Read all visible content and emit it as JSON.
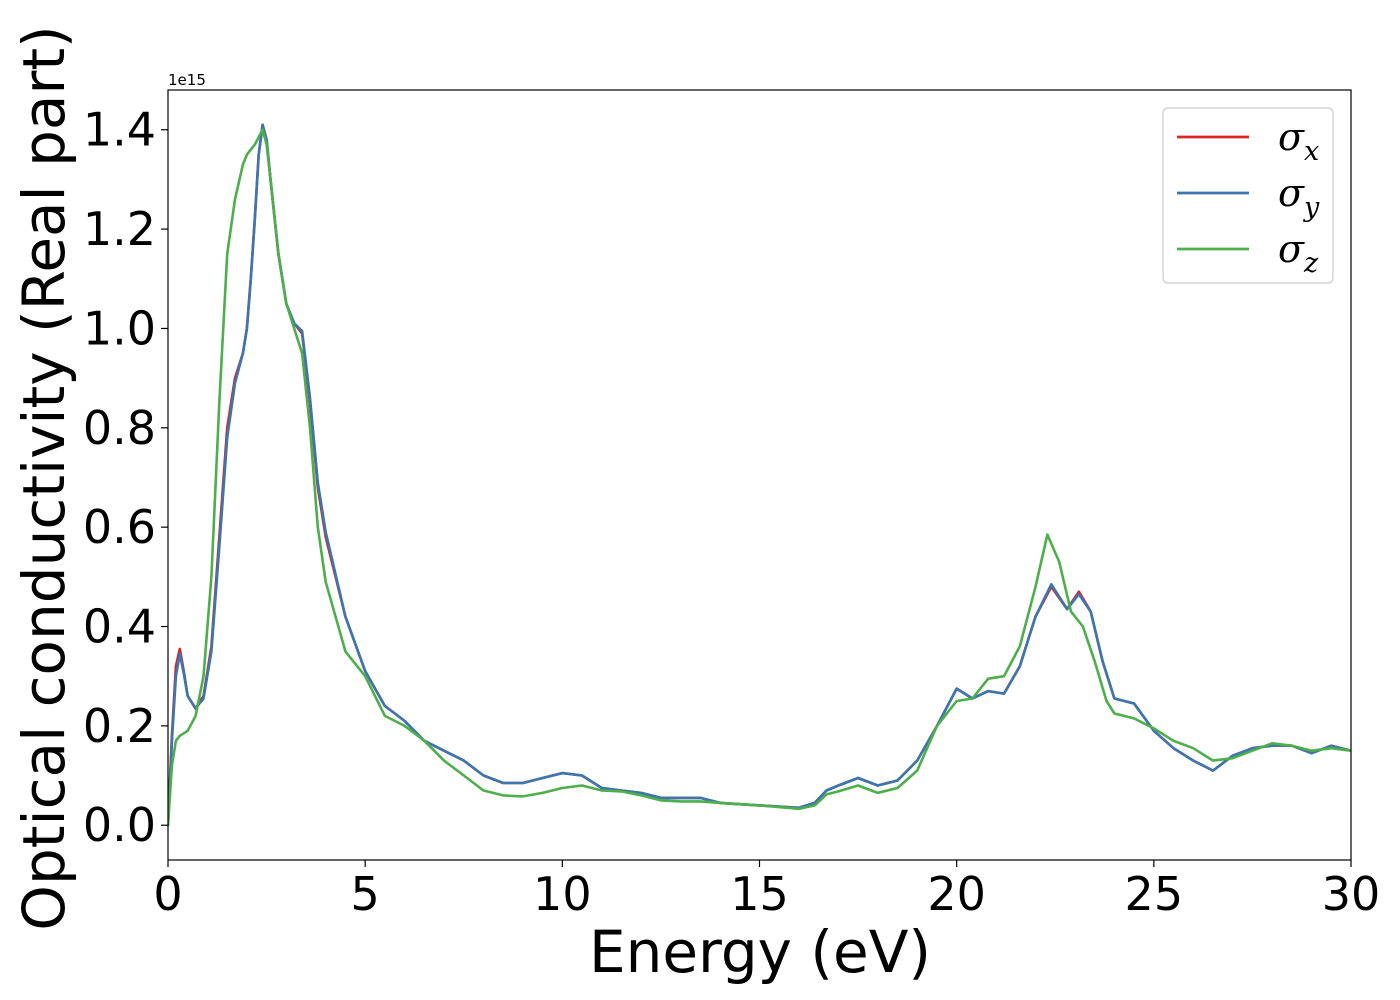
{
  "chart_data": {
    "type": "line",
    "title": "",
    "xlabel": "Energy (eV)",
    "ylabel": "Optical conductivity (Real part)",
    "y_offset_label": "1e15",
    "xlim": [
      0,
      30
    ],
    "ylim": [
      -0.07,
      1.48
    ],
    "x_ticks": [
      0,
      5,
      10,
      15,
      20,
      25,
      30
    ],
    "x_tick_labels": [
      "0",
      "5",
      "10",
      "15",
      "20",
      "25",
      "30"
    ],
    "y_ticks": [
      0.0,
      0.2,
      0.4,
      0.6,
      0.8,
      1.0,
      1.2,
      1.4
    ],
    "y_tick_labels": [
      "0.0",
      "0.2",
      "0.4",
      "0.6",
      "0.8",
      "1.0",
      "1.2",
      "1.4"
    ],
    "grid": false,
    "legend_position": "top-right",
    "series": [
      {
        "name": "σx",
        "color": "#d62728",
        "points": [
          [
            0,
            0
          ],
          [
            0.1,
            0.18
          ],
          [
            0.2,
            0.32
          ],
          [
            0.3,
            0.355
          ],
          [
            0.4,
            0.31
          ],
          [
            0.5,
            0.26
          ],
          [
            0.7,
            0.235
          ],
          [
            0.9,
            0.26
          ],
          [
            1.1,
            0.36
          ],
          [
            1.3,
            0.58
          ],
          [
            1.5,
            0.8
          ],
          [
            1.7,
            0.9
          ],
          [
            1.9,
            0.95
          ],
          [
            2.0,
            1.0
          ],
          [
            2.1,
            1.1
          ],
          [
            2.2,
            1.22
          ],
          [
            2.3,
            1.35
          ],
          [
            2.4,
            1.41
          ],
          [
            2.5,
            1.38
          ],
          [
            2.6,
            1.3
          ],
          [
            2.8,
            1.15
          ],
          [
            3.0,
            1.05
          ],
          [
            3.2,
            1.01
          ],
          [
            3.4,
            0.99
          ],
          [
            3.6,
            0.85
          ],
          [
            3.8,
            0.68
          ],
          [
            4.0,
            0.58
          ],
          [
            4.5,
            0.42
          ],
          [
            5.0,
            0.31
          ],
          [
            5.5,
            0.24
          ],
          [
            6.0,
            0.21
          ],
          [
            6.5,
            0.17
          ],
          [
            7.0,
            0.15
          ],
          [
            7.5,
            0.13
          ],
          [
            8.0,
            0.1
          ],
          [
            8.5,
            0.085
          ],
          [
            9.0,
            0.085
          ],
          [
            9.5,
            0.095
          ],
          [
            10.0,
            0.105
          ],
          [
            10.5,
            0.1
          ],
          [
            11.0,
            0.075
          ],
          [
            11.5,
            0.07
          ],
          [
            12.0,
            0.065
          ],
          [
            12.5,
            0.055
          ],
          [
            13.0,
            0.055
          ],
          [
            13.5,
            0.055
          ],
          [
            14.0,
            0.045
          ],
          [
            15.0,
            0.04
          ],
          [
            16.0,
            0.035
          ],
          [
            16.4,
            0.045
          ],
          [
            16.7,
            0.07
          ],
          [
            17.0,
            0.08
          ],
          [
            17.5,
            0.095
          ],
          [
            18.0,
            0.08
          ],
          [
            18.5,
            0.09
          ],
          [
            19.0,
            0.13
          ],
          [
            19.5,
            0.2
          ],
          [
            20.0,
            0.275
          ],
          [
            20.4,
            0.255
          ],
          [
            20.8,
            0.27
          ],
          [
            21.2,
            0.265
          ],
          [
            21.6,
            0.32
          ],
          [
            22.0,
            0.42
          ],
          [
            22.4,
            0.48
          ],
          [
            22.8,
            0.435
          ],
          [
            23.1,
            0.47
          ],
          [
            23.4,
            0.43
          ],
          [
            23.7,
            0.33
          ],
          [
            24.0,
            0.255
          ],
          [
            24.5,
            0.245
          ],
          [
            25.0,
            0.19
          ],
          [
            25.5,
            0.155
          ],
          [
            26.0,
            0.13
          ],
          [
            26.5,
            0.11
          ],
          [
            27.0,
            0.14
          ],
          [
            27.5,
            0.155
          ],
          [
            28.0,
            0.16
          ],
          [
            28.5,
            0.16
          ],
          [
            29.0,
            0.145
          ],
          [
            29.5,
            0.16
          ],
          [
            30,
            0.15
          ]
        ]
      },
      {
        "name": "σy",
        "color": "#3a76b0",
        "points": [
          [
            0,
            0
          ],
          [
            0.1,
            0.17
          ],
          [
            0.2,
            0.3
          ],
          [
            0.3,
            0.345
          ],
          [
            0.4,
            0.305
          ],
          [
            0.5,
            0.26
          ],
          [
            0.7,
            0.235
          ],
          [
            0.9,
            0.255
          ],
          [
            1.1,
            0.35
          ],
          [
            1.3,
            0.56
          ],
          [
            1.5,
            0.78
          ],
          [
            1.7,
            0.89
          ],
          [
            1.9,
            0.95
          ],
          [
            2.0,
            1.0
          ],
          [
            2.1,
            1.1
          ],
          [
            2.2,
            1.22
          ],
          [
            2.3,
            1.35
          ],
          [
            2.4,
            1.41
          ],
          [
            2.5,
            1.38
          ],
          [
            2.6,
            1.3
          ],
          [
            2.8,
            1.15
          ],
          [
            3.0,
            1.05
          ],
          [
            3.2,
            1.01
          ],
          [
            3.4,
            0.995
          ],
          [
            3.6,
            0.86
          ],
          [
            3.8,
            0.69
          ],
          [
            4.0,
            0.59
          ],
          [
            4.5,
            0.42
          ],
          [
            5.0,
            0.31
          ],
          [
            5.5,
            0.24
          ],
          [
            6.0,
            0.21
          ],
          [
            6.5,
            0.17
          ],
          [
            7.0,
            0.15
          ],
          [
            7.5,
            0.13
          ],
          [
            8.0,
            0.1
          ],
          [
            8.5,
            0.085
          ],
          [
            9.0,
            0.085
          ],
          [
            9.5,
            0.095
          ],
          [
            10.0,
            0.105
          ],
          [
            10.5,
            0.1
          ],
          [
            11.0,
            0.075
          ],
          [
            11.5,
            0.07
          ],
          [
            12.0,
            0.065
          ],
          [
            12.5,
            0.055
          ],
          [
            13.0,
            0.055
          ],
          [
            13.5,
            0.055
          ],
          [
            14.0,
            0.045
          ],
          [
            15.0,
            0.04
          ],
          [
            16.0,
            0.035
          ],
          [
            16.4,
            0.045
          ],
          [
            16.7,
            0.07
          ],
          [
            17.0,
            0.08
          ],
          [
            17.5,
            0.095
          ],
          [
            18.0,
            0.08
          ],
          [
            18.5,
            0.09
          ],
          [
            19.0,
            0.13
          ],
          [
            19.5,
            0.2
          ],
          [
            20.0,
            0.275
          ],
          [
            20.4,
            0.255
          ],
          [
            20.8,
            0.27
          ],
          [
            21.2,
            0.265
          ],
          [
            21.6,
            0.32
          ],
          [
            22.0,
            0.42
          ],
          [
            22.4,
            0.485
          ],
          [
            22.8,
            0.435
          ],
          [
            23.1,
            0.465
          ],
          [
            23.4,
            0.43
          ],
          [
            23.7,
            0.33
          ],
          [
            24.0,
            0.255
          ],
          [
            24.5,
            0.245
          ],
          [
            25.0,
            0.19
          ],
          [
            25.5,
            0.155
          ],
          [
            26.0,
            0.13
          ],
          [
            26.5,
            0.11
          ],
          [
            27.0,
            0.14
          ],
          [
            27.5,
            0.155
          ],
          [
            28.0,
            0.16
          ],
          [
            28.5,
            0.16
          ],
          [
            29.0,
            0.145
          ],
          [
            29.5,
            0.16
          ],
          [
            30,
            0.15
          ]
        ]
      },
      {
        "name": "σz",
        "color": "#4caf4a",
        "points": [
          [
            0,
            0
          ],
          [
            0.1,
            0.12
          ],
          [
            0.2,
            0.17
          ],
          [
            0.3,
            0.18
          ],
          [
            0.5,
            0.19
          ],
          [
            0.7,
            0.22
          ],
          [
            0.9,
            0.3
          ],
          [
            1.1,
            0.5
          ],
          [
            1.3,
            0.85
          ],
          [
            1.5,
            1.15
          ],
          [
            1.7,
            1.26
          ],
          [
            1.9,
            1.33
          ],
          [
            2.0,
            1.35
          ],
          [
            2.2,
            1.37
          ],
          [
            2.4,
            1.4
          ],
          [
            2.5,
            1.37
          ],
          [
            2.6,
            1.3
          ],
          [
            2.8,
            1.15
          ],
          [
            3.0,
            1.05
          ],
          [
            3.2,
            1.0
          ],
          [
            3.4,
            0.95
          ],
          [
            3.6,
            0.8
          ],
          [
            3.8,
            0.6
          ],
          [
            4.0,
            0.49
          ],
          [
            4.5,
            0.35
          ],
          [
            5.0,
            0.3
          ],
          [
            5.5,
            0.22
          ],
          [
            6.0,
            0.2
          ],
          [
            6.5,
            0.17
          ],
          [
            7.0,
            0.13
          ],
          [
            7.5,
            0.1
          ],
          [
            8.0,
            0.07
          ],
          [
            8.5,
            0.06
          ],
          [
            9.0,
            0.058
          ],
          [
            9.5,
            0.065
          ],
          [
            10.0,
            0.075
          ],
          [
            10.5,
            0.08
          ],
          [
            11.0,
            0.07
          ],
          [
            11.5,
            0.068
          ],
          [
            12.0,
            0.06
          ],
          [
            12.5,
            0.05
          ],
          [
            13.0,
            0.048
          ],
          [
            13.5,
            0.048
          ],
          [
            14.0,
            0.045
          ],
          [
            15.0,
            0.04
          ],
          [
            16.0,
            0.033
          ],
          [
            16.4,
            0.04
          ],
          [
            16.7,
            0.062
          ],
          [
            17.0,
            0.068
          ],
          [
            17.5,
            0.08
          ],
          [
            18.0,
            0.065
          ],
          [
            18.5,
            0.075
          ],
          [
            19.0,
            0.11
          ],
          [
            19.5,
            0.2
          ],
          [
            20.0,
            0.25
          ],
          [
            20.4,
            0.255
          ],
          [
            20.8,
            0.295
          ],
          [
            21.2,
            0.3
          ],
          [
            21.6,
            0.36
          ],
          [
            22.0,
            0.48
          ],
          [
            22.3,
            0.585
          ],
          [
            22.6,
            0.53
          ],
          [
            22.9,
            0.43
          ],
          [
            23.2,
            0.4
          ],
          [
            23.5,
            0.33
          ],
          [
            23.8,
            0.25
          ],
          [
            24.0,
            0.225
          ],
          [
            24.5,
            0.215
          ],
          [
            25.0,
            0.195
          ],
          [
            25.5,
            0.17
          ],
          [
            26.0,
            0.155
          ],
          [
            26.5,
            0.13
          ],
          [
            27.0,
            0.135
          ],
          [
            27.5,
            0.15
          ],
          [
            28.0,
            0.165
          ],
          [
            28.5,
            0.16
          ],
          [
            29.0,
            0.15
          ],
          [
            29.5,
            0.155
          ],
          [
            30,
            0.15
          ]
        ]
      }
    ]
  }
}
